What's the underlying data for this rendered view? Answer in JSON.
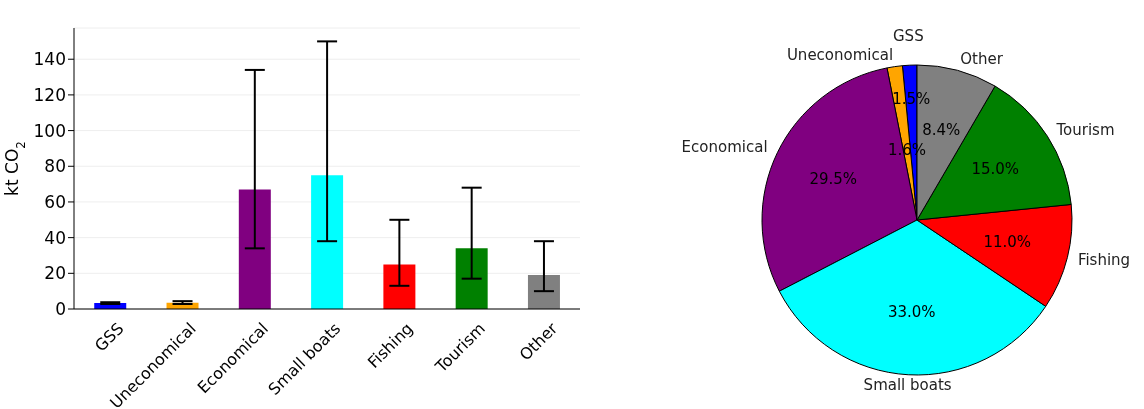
{
  "chart_data": [
    {
      "type": "bar",
      "ylabel": "kt CO$_{2}$",
      "categories": [
        "GSS",
        "Uneconomical",
        "Economical",
        "Small boats",
        "Fishing",
        "Tourism",
        "Other"
      ],
      "values": [
        3.3,
        3.5,
        67,
        75,
        25,
        34,
        19
      ],
      "colors": [
        "#0000ff",
        "#ffa500",
        "#800080",
        "#00ffff",
        "#ff0000",
        "#008000",
        "#808080"
      ],
      "errors": [
        [
          2.8,
          3.8
        ],
        [
          2.8,
          4.4
        ],
        [
          34,
          134
        ],
        [
          38,
          150
        ],
        [
          13,
          50
        ],
        [
          17,
          68
        ],
        [
          10,
          38
        ]
      ],
      "ylim": [
        0,
        157.5
      ],
      "yticks": [
        0,
        20,
        40,
        60,
        80,
        100,
        120,
        140
      ],
      "grid": "y"
    },
    {
      "type": "pie",
      "categories": [
        "GSS",
        "Uneconomical",
        "Economical",
        "Small boats",
        "Fishing",
        "Tourism",
        "Other"
      ],
      "values": [
        1.5,
        1.6,
        29.5,
        33.0,
        11.0,
        15.0,
        8.4
      ],
      "colors": [
        "#0000ff",
        "#ffa500",
        "#800080",
        "#00ffff",
        "#ff0000",
        "#008000",
        "#808080"
      ],
      "value_labels": [
        "1.5%",
        "1.6%",
        "29.5%",
        "33.0%",
        "11.0%",
        "15.0%",
        "8.4%"
      ]
    }
  ]
}
